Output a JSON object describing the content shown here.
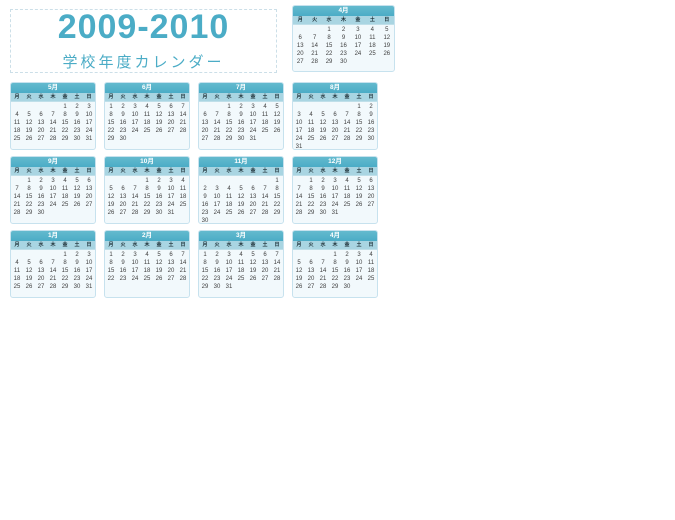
{
  "page": {
    "title": "2009-2010",
    "subtitle": "学校年度カレンダー"
  },
  "colors": {
    "accent_blue": "#4bacc6",
    "band_blue": "#4bacc6",
    "weekday_row_blue": "#a9d5e2",
    "calendar_body": "#f2f9fc",
    "calendar_border": "#c7e2ee",
    "date_text": "#404040",
    "page_background": "#ffffff"
  },
  "calendar": {
    "weekday_headers": [
      "月",
      "火",
      "水",
      "木",
      "金",
      "土",
      "日"
    ],
    "months": [
      {
        "label": "4月",
        "row": 0,
        "col": 3,
        "wide": true,
        "weeks": [
          [
            "",
            "",
            "1",
            "2",
            "3",
            "4",
            "5"
          ],
          [
            "6",
            "7",
            "8",
            "9",
            "10",
            "11",
            "12"
          ],
          [
            "13",
            "14",
            "15",
            "16",
            "17",
            "18",
            "19"
          ],
          [
            "20",
            "21",
            "22",
            "23",
            "24",
            "25",
            "26"
          ],
          [
            "27",
            "28",
            "29",
            "30",
            "",
            "",
            ""
          ]
        ]
      },
      {
        "label": "5月",
        "row": 1,
        "col": 0,
        "wide": false,
        "weeks": [
          [
            "",
            "",
            "",
            "",
            "1",
            "2",
            "3"
          ],
          [
            "4",
            "5",
            "6",
            "7",
            "8",
            "9",
            "10"
          ],
          [
            "11",
            "12",
            "13",
            "14",
            "15",
            "16",
            "17"
          ],
          [
            "18",
            "19",
            "20",
            "21",
            "22",
            "23",
            "24"
          ],
          [
            "25",
            "26",
            "27",
            "28",
            "29",
            "30",
            "31"
          ]
        ]
      },
      {
        "label": "6月",
        "row": 1,
        "col": 1,
        "wide": false,
        "weeks": [
          [
            "1",
            "2",
            "3",
            "4",
            "5",
            "6",
            "7"
          ],
          [
            "8",
            "9",
            "10",
            "11",
            "12",
            "13",
            "14"
          ],
          [
            "15",
            "16",
            "17",
            "18",
            "19",
            "20",
            "21"
          ],
          [
            "22",
            "23",
            "24",
            "25",
            "26",
            "27",
            "28"
          ],
          [
            "29",
            "30",
            "",
            "",
            "",
            "",
            ""
          ]
        ]
      },
      {
        "label": "7月",
        "row": 1,
        "col": 2,
        "wide": false,
        "weeks": [
          [
            "",
            "",
            "1",
            "2",
            "3",
            "4",
            "5"
          ],
          [
            "6",
            "7",
            "8",
            "9",
            "10",
            "11",
            "12"
          ],
          [
            "13",
            "14",
            "15",
            "16",
            "17",
            "18",
            "19"
          ],
          [
            "20",
            "21",
            "22",
            "23",
            "24",
            "25",
            "26"
          ],
          [
            "27",
            "28",
            "29",
            "30",
            "31",
            "",
            ""
          ]
        ]
      },
      {
        "label": "8月",
        "row": 1,
        "col": 3,
        "wide": false,
        "weeks": [
          [
            "",
            "",
            "",
            "",
            "",
            "1",
            "2"
          ],
          [
            "3",
            "4",
            "5",
            "6",
            "7",
            "8",
            "9"
          ],
          [
            "10",
            "11",
            "12",
            "13",
            "14",
            "15",
            "16"
          ],
          [
            "17",
            "18",
            "19",
            "20",
            "21",
            "22",
            "23"
          ],
          [
            "24",
            "25",
            "26",
            "27",
            "28",
            "29",
            "30"
          ],
          [
            "31",
            "",
            "",
            "",
            "",
            "",
            ""
          ]
        ]
      },
      {
        "label": "9月",
        "row": 2,
        "col": 0,
        "wide": false,
        "weeks": [
          [
            "",
            "1",
            "2",
            "3",
            "4",
            "5",
            "6"
          ],
          [
            "7",
            "8",
            "9",
            "10",
            "11",
            "12",
            "13"
          ],
          [
            "14",
            "15",
            "16",
            "17",
            "18",
            "19",
            "20"
          ],
          [
            "21",
            "22",
            "23",
            "24",
            "25",
            "26",
            "27"
          ],
          [
            "28",
            "29",
            "30",
            "",
            "",
            "",
            ""
          ]
        ]
      },
      {
        "label": "10月",
        "row": 2,
        "col": 1,
        "wide": false,
        "weeks": [
          [
            "",
            "",
            "",
            "1",
            "2",
            "3",
            "4"
          ],
          [
            "5",
            "6",
            "7",
            "8",
            "9",
            "10",
            "11"
          ],
          [
            "12",
            "13",
            "14",
            "15",
            "16",
            "17",
            "18"
          ],
          [
            "19",
            "20",
            "21",
            "22",
            "23",
            "24",
            "25"
          ],
          [
            "26",
            "27",
            "28",
            "29",
            "30",
            "31",
            ""
          ]
        ]
      },
      {
        "label": "11月",
        "row": 2,
        "col": 2,
        "wide": false,
        "weeks": [
          [
            "",
            "",
            "",
            "",
            "",
            "",
            "1"
          ],
          [
            "2",
            "3",
            "4",
            "5",
            "6",
            "7",
            "8"
          ],
          [
            "9",
            "10",
            "11",
            "12",
            "13",
            "14",
            "15"
          ],
          [
            "16",
            "17",
            "18",
            "19",
            "20",
            "21",
            "22"
          ],
          [
            "23",
            "24",
            "25",
            "26",
            "27",
            "28",
            "29"
          ],
          [
            "30",
            "",
            "",
            "",
            "",
            "",
            ""
          ]
        ]
      },
      {
        "label": "12月",
        "row": 2,
        "col": 3,
        "wide": false,
        "weeks": [
          [
            "",
            "1",
            "2",
            "3",
            "4",
            "5",
            "6"
          ],
          [
            "7",
            "8",
            "9",
            "10",
            "11",
            "12",
            "13"
          ],
          [
            "14",
            "15",
            "16",
            "17",
            "18",
            "19",
            "20"
          ],
          [
            "21",
            "22",
            "23",
            "24",
            "25",
            "26",
            "27"
          ],
          [
            "28",
            "29",
            "30",
            "31",
            "",
            "",
            ""
          ]
        ]
      },
      {
        "label": "1月",
        "row": 3,
        "col": 0,
        "wide": false,
        "weeks": [
          [
            "",
            "",
            "",
            "",
            "1",
            "2",
            "3"
          ],
          [
            "4",
            "5",
            "6",
            "7",
            "8",
            "9",
            "10"
          ],
          [
            "11",
            "12",
            "13",
            "14",
            "15",
            "16",
            "17"
          ],
          [
            "18",
            "19",
            "20",
            "21",
            "22",
            "23",
            "24"
          ],
          [
            "25",
            "26",
            "27",
            "28",
            "29",
            "30",
            "31"
          ]
        ]
      },
      {
        "label": "2月",
        "row": 3,
        "col": 1,
        "wide": false,
        "weeks": [
          [
            "1",
            "2",
            "3",
            "4",
            "5",
            "6",
            "7"
          ],
          [
            "8",
            "9",
            "10",
            "11",
            "12",
            "13",
            "14"
          ],
          [
            "15",
            "16",
            "17",
            "18",
            "19",
            "20",
            "21"
          ],
          [
            "22",
            "23",
            "24",
            "25",
            "26",
            "27",
            "28"
          ]
        ]
      },
      {
        "label": "3月",
        "row": 3,
        "col": 2,
        "wide": false,
        "weeks": [
          [
            "1",
            "2",
            "3",
            "4",
            "5",
            "6",
            "7"
          ],
          [
            "8",
            "9",
            "10",
            "11",
            "12",
            "13",
            "14"
          ],
          [
            "15",
            "16",
            "17",
            "18",
            "19",
            "20",
            "21"
          ],
          [
            "22",
            "23",
            "24",
            "25",
            "26",
            "27",
            "28"
          ],
          [
            "29",
            "30",
            "31",
            "",
            "",
            "",
            ""
          ]
        ]
      },
      {
        "label": "4月",
        "row": 3,
        "col": 3,
        "wide": false,
        "weeks": [
          [
            "",
            "",
            "",
            "1",
            "2",
            "3",
            "4"
          ],
          [
            "5",
            "6",
            "7",
            "8",
            "9",
            "10",
            "11"
          ],
          [
            "12",
            "13",
            "14",
            "15",
            "16",
            "17",
            "18"
          ],
          [
            "19",
            "20",
            "21",
            "22",
            "23",
            "24",
            "25"
          ],
          [
            "26",
            "27",
            "28",
            "29",
            "30",
            "",
            ""
          ]
        ]
      }
    ]
  }
}
